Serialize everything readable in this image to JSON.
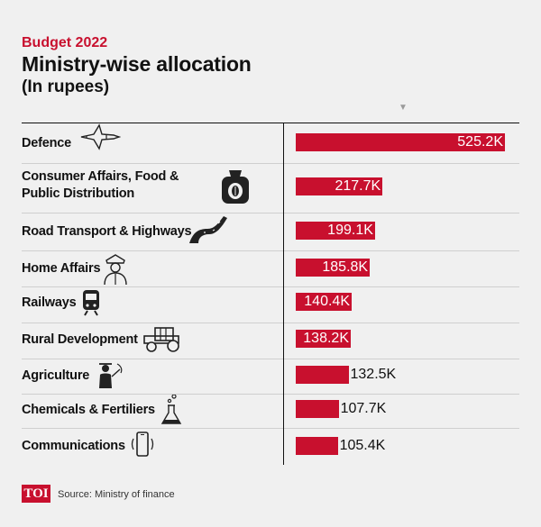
{
  "header": {
    "kicker": "Budget 2022",
    "title": "Ministry-wise allocation",
    "subtitle": "(In rupees)"
  },
  "footer": {
    "logo_text": "TOI",
    "source": "Source: Ministry of finance"
  },
  "colors": {
    "bar": "#c8102e",
    "background": "#f0f0f0"
  },
  "chart_data": {
    "type": "bar",
    "orientation": "horizontal",
    "title": "Ministry-wise allocation",
    "subtitle": "(In rupees)",
    "xlim": [
      0,
      525.2
    ],
    "grid": false,
    "categories": [
      "Defence",
      "Consumer Affairs, Food & Public Distribution",
      "Road Transport & Highways",
      "Home Affairs",
      "Railways",
      "Rural Development",
      "Agriculture",
      "Chemicals & Fertiliers",
      "Communications"
    ],
    "values": [
      525.2,
      217.7,
      199.1,
      185.8,
      140.4,
      138.2,
      132.5,
      107.7,
      105.4
    ],
    "labels": [
      "525.2K",
      "217.7K",
      "199.1K",
      "185.8K",
      "140.4K",
      "138.2K",
      "132.5K",
      "107.7K",
      "105.4K"
    ],
    "icons": [
      "fighter-jet-icon",
      "grain-sack-icon",
      "road-icon",
      "police-officer-icon",
      "train-icon",
      "tractor-icon",
      "farmer-icon",
      "flask-icon",
      "mobile-phone-icon"
    ]
  }
}
